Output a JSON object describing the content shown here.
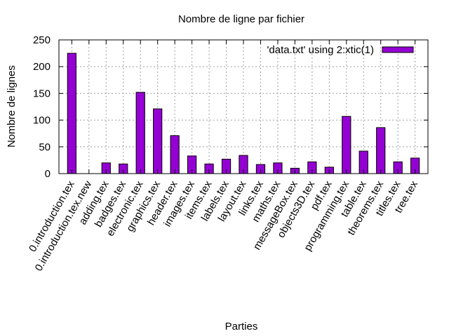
{
  "chart_data": {
    "type": "bar",
    "title": "Nombre de ligne par fichier",
    "xlabel": "Parties",
    "ylabel": "Nombre de lignes",
    "ylim": [
      0,
      250
    ],
    "yticks": [
      "0",
      "50",
      "100",
      "150",
      "200",
      "250"
    ],
    "grid": true,
    "legend_position": "top-right",
    "bar_color": "#9400d3",
    "series": [
      {
        "name": "'data.txt' using 2:xtic(1)",
        "values": [
          225,
          0,
          20,
          18,
          152,
          121,
          71,
          33,
          18,
          27,
          34,
          17,
          20,
          10,
          22,
          12,
          107,
          42,
          86,
          22,
          29
        ]
      }
    ],
    "categories": [
      "0.introduction.tex",
      "0.introduction.tex.new",
      "adding.tex",
      "badges.tex",
      "electronic.tex",
      "graphics.tex",
      "header.tex",
      "images.tex",
      "items.tex",
      "labels.tex",
      "layout.tex",
      "links.tex",
      "maths.tex",
      "messageBox.tex",
      "objects3D.tex",
      "pdf.tex",
      "programming.tex",
      "table.tex",
      "theorems.tex",
      "titles.tex",
      "tree.tex"
    ]
  }
}
